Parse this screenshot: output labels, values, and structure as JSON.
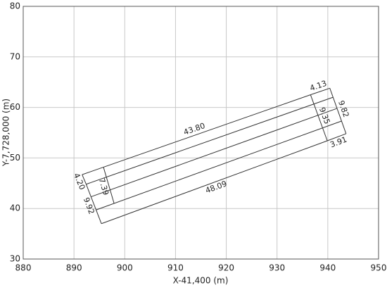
{
  "chart_data": {
    "type": "line",
    "xlabel": "X-41,400 (m)",
    "ylabel": "Y-7,728,000 (m)",
    "xlim": [
      880,
      950
    ],
    "xticks": [
      880,
      890,
      900,
      910,
      920,
      930,
      940,
      950
    ],
    "ylim": [
      30,
      80
    ],
    "yticks": [
      30,
      40,
      50,
      60,
      70,
      80
    ],
    "grid": true,
    "color": "#333333",
    "edges": [
      {
        "x": [
          891.6,
          936.6
        ],
        "y": [
          46.7,
          62.5
        ],
        "label": "43.80"
      },
      {
        "x": [
          936.6,
          940.4
        ],
        "y": [
          62.5,
          63.8
        ],
        "label": "4.13"
      },
      {
        "x": [
          940.4,
          943.6
        ],
        "y": [
          63.8,
          54.8
        ],
        "label": "9.82"
      },
      {
        "x": [
          939.9,
          943.6
        ],
        "y": [
          53.4,
          54.8
        ],
        "label": "3.91"
      },
      {
        "x": [
          895.4,
          939.9
        ],
        "y": [
          37.0,
          53.4
        ],
        "label": "48.09"
      },
      {
        "x": [
          891.6,
          892.4
        ],
        "y": [
          46.7,
          44.8
        ],
        "label": "4.20"
      },
      {
        "x": [
          892.4,
          895.4
        ],
        "y": [
          44.8,
          37.0
        ],
        "label": "9.92"
      },
      {
        "x": [
          895.8,
          897.9
        ],
        "y": [
          48.2,
          41.0
        ],
        "label": "7.39"
      },
      {
        "x": [
          936.6,
          939.9
        ],
        "y": [
          62.5,
          53.4
        ],
        "label": "9.35"
      },
      {
        "x": [
          892.4,
          941.0
        ],
        "y": [
          44.8,
          62.0
        ]
      },
      {
        "x": [
          893.3,
          941.8
        ],
        "y": [
          42.3,
          59.8
        ]
      },
      {
        "x": [
          894.3,
          942.7
        ],
        "y": [
          39.7,
          57.3
        ]
      }
    ]
  }
}
